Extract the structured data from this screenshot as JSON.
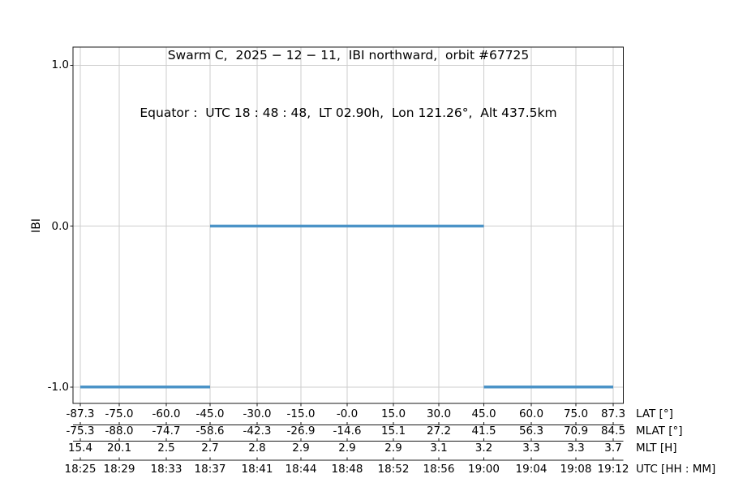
{
  "title": {
    "line1": "Swarm C,  2025 − 12 − 11,  IBI northward,  orbit #67725",
    "line2": "Equator :  UTC 18 : 48 : 48,  LT 02.90h,  Lon 121.26°,  Alt 437.5km"
  },
  "y_axis": {
    "label": "IBI",
    "tick_labels": [
      "1.0",
      "0.0",
      "-1.0"
    ]
  },
  "chart_data": {
    "type": "line",
    "title": "Swarm C, 2025−12−11, IBI northward, orbit #67725",
    "subtitle": "Equator: UTC 18:48:48, LT 02.90h, Lon 121.26°, Alt 437.5km",
    "ylabel": "IBI",
    "ylim": [
      -1.1,
      1.1
    ],
    "yticks": [
      1.0,
      0.0,
      -1.0
    ],
    "grid": true,
    "legend": "none",
    "line_color": "#4b93c7",
    "grid_color": "#cdcdcd",
    "series": [
      {
        "name": "IBI",
        "segments": [
          {
            "ibi": -1,
            "lat_from": -87.3,
            "lat_to": -45.0,
            "utc_from": "18:25",
            "utc_to": "18:37"
          },
          {
            "ibi": 0,
            "lat_from": -45.0,
            "lat_to": 45.0,
            "utc_from": "18:37",
            "utc_to": "19:00"
          },
          {
            "ibi": -1,
            "lat_from": 45.0,
            "lat_to": 87.3,
            "utc_from": "19:00",
            "utc_to": "19:12"
          }
        ]
      }
    ],
    "axis_rows": [
      {
        "key": "lat",
        "label": "LAT [°]",
        "values": [
          "-87.3",
          "-75.0",
          "-60.0",
          "-45.0",
          "-30.0",
          "-15.0",
          "-0.0",
          "15.0",
          "30.0",
          "45.0",
          "60.0",
          "75.0",
          "87.3"
        ]
      },
      {
        "key": "mlat",
        "label": "MLAT [°]",
        "values": [
          "-75.3",
          "-88.0",
          "-74.7",
          "-58.6",
          "-42.3",
          "-26.9",
          "-14.6",
          "15.1",
          "27.2",
          "41.5",
          "56.3",
          "70.9",
          "84.5"
        ]
      },
      {
        "key": "mlt",
        "label": "MLT [H]",
        "values": [
          "15.4",
          "20.1",
          "2.5",
          "2.7",
          "2.8",
          "2.9",
          "2.9",
          "2.9",
          "3.1",
          "3.2",
          "3.3",
          "3.3",
          "3.7"
        ]
      },
      {
        "key": "utc",
        "label": "UTC [HH : MM]",
        "values": [
          "18:25",
          "18:29",
          "18:33",
          "18:37",
          "18:41",
          "18:44",
          "18:48",
          "18:52",
          "18:56",
          "19:00",
          "19:04",
          "19:08",
          "19:12"
        ]
      }
    ]
  }
}
